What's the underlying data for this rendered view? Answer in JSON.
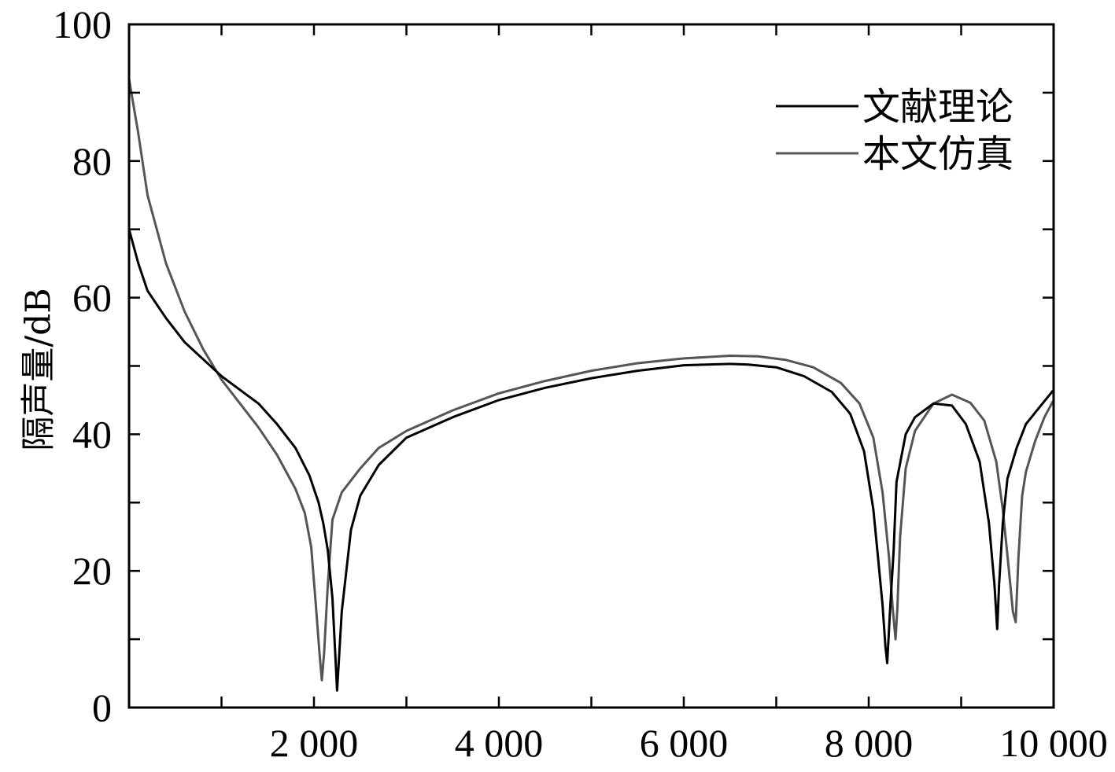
{
  "chart_data": {
    "type": "line",
    "title": "",
    "xlabel": "",
    "ylabel": "隔声量/dB",
    "xlim": [
      0,
      10000
    ],
    "ylim": [
      0,
      100
    ],
    "x_ticks": [
      2000,
      4000,
      6000,
      8000,
      10000
    ],
    "x_tick_labels": [
      "2 000",
      "4 000",
      "6 000",
      "8 000",
      "10 000"
    ],
    "x_minor_ticks": [
      1000,
      3000,
      5000,
      7000,
      9000
    ],
    "y_ticks": [
      0,
      20,
      40,
      60,
      80,
      100
    ],
    "y_tick_labels": [
      "0",
      "20",
      "40",
      "60",
      "80",
      "100"
    ],
    "y_minor_ticks": [
      10,
      30,
      50,
      70,
      90
    ],
    "grid": false,
    "legend_position": "top-right",
    "series": [
      {
        "name": "文献理论",
        "color": "#000000",
        "x": [
          0,
          100,
          200,
          400,
          600,
          800,
          1000,
          1200,
          1400,
          1600,
          1800,
          1950,
          2050,
          2100,
          2150,
          2200,
          2230,
          2250,
          2300,
          2400,
          2500,
          2700,
          3000,
          3500,
          4000,
          4500,
          5000,
          5500,
          6000,
          6500,
          6700,
          7000,
          7300,
          7600,
          7800,
          7950,
          8050,
          8100,
          8150,
          8180,
          8200,
          8230,
          8270,
          8300,
          8400,
          8500,
          8700,
          8900,
          9050,
          9200,
          9300,
          9360,
          9390,
          9410,
          9450,
          9500,
          9600,
          9700,
          9850,
          10000
        ],
        "y": [
          70,
          65,
          61,
          57,
          53.5,
          51,
          48.5,
          46.5,
          44.5,
          41.5,
          38,
          34,
          30,
          27,
          23,
          16,
          8,
          2.5,
          14,
          26,
          31,
          35.5,
          39.5,
          42.5,
          45,
          46.8,
          48.2,
          49.3,
          50.1,
          50.3,
          50.2,
          49.8,
          48.5,
          46.2,
          43,
          37.5,
          29,
          22,
          15,
          9,
          6.5,
          14,
          23,
          33,
          40,
          42.5,
          44.5,
          44.2,
          41.5,
          36,
          27,
          18,
          11.5,
          18,
          27,
          33.5,
          38,
          41.5,
          44,
          46.5
        ]
      },
      {
        "name": "本文仿真",
        "color": "#555555",
        "x": [
          0,
          100,
          200,
          400,
          600,
          800,
          1000,
          1200,
          1400,
          1600,
          1800,
          1900,
          1970,
          2020,
          2060,
          2085,
          2110,
          2150,
          2200,
          2300,
          2500,
          2700,
          3000,
          3500,
          4000,
          4500,
          5000,
          5500,
          6000,
          6500,
          6800,
          7100,
          7400,
          7700,
          7900,
          8050,
          8150,
          8220,
          8260,
          8290,
          8310,
          8340,
          8400,
          8500,
          8700,
          8900,
          9100,
          9250,
          9380,
          9450,
          9510,
          9560,
          9590,
          9620,
          9660,
          9700,
          9800,
          9900,
          10000
        ],
        "y": [
          92,
          84,
          75,
          65,
          58,
          52.5,
          48,
          44.5,
          41,
          37,
          32,
          28.5,
          23.5,
          15,
          8,
          4,
          8,
          18,
          27.5,
          31.5,
          35,
          38,
          40.5,
          43.5,
          46,
          47.8,
          49.3,
          50.4,
          51.1,
          51.5,
          51.4,
          50.9,
          49.8,
          47.5,
          44.5,
          39.5,
          31.5,
          22,
          14.5,
          10,
          14.5,
          25,
          35,
          40.5,
          44.5,
          45.8,
          44.6,
          42,
          36,
          29,
          21,
          14,
          12.5,
          22,
          31,
          34.5,
          39,
          42.5,
          45
        ]
      }
    ]
  }
}
